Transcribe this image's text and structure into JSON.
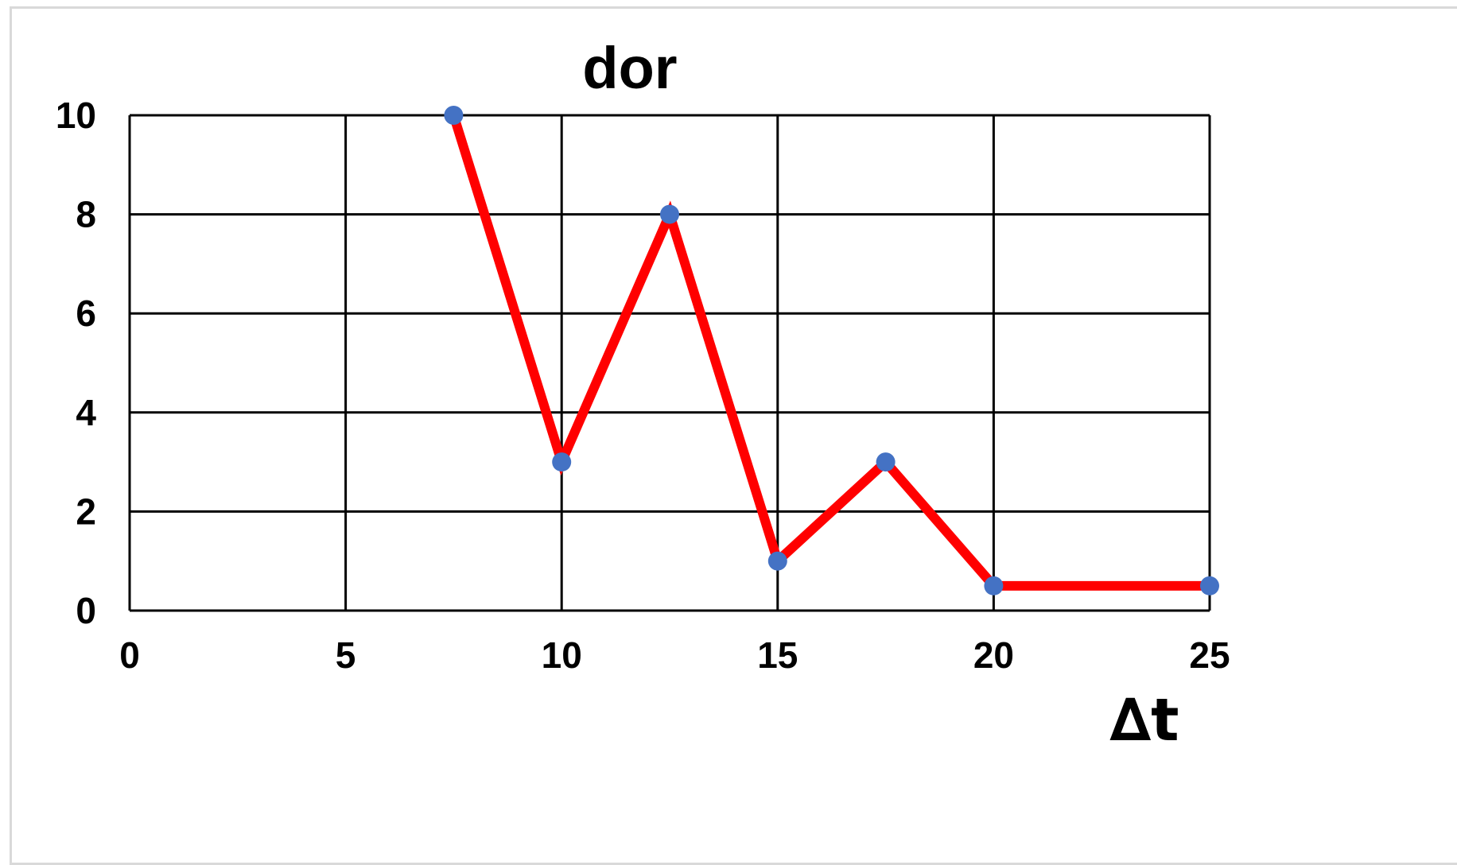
{
  "chart_data": {
    "type": "line",
    "title": "dor",
    "xlabel": "∆t",
    "ylabel": "",
    "xlim": [
      0,
      25
    ],
    "ylim": [
      0,
      10
    ],
    "x_ticks": [
      0,
      5,
      10,
      15,
      20,
      25
    ],
    "y_ticks": [
      0,
      2,
      4,
      6,
      8,
      10
    ],
    "grid": true,
    "legend": "none",
    "series": [
      {
        "x": [
          7.5,
          10,
          12.5,
          15,
          17.5,
          20,
          25
        ],
        "y": [
          10,
          3,
          8,
          1,
          3,
          0.5,
          0.5
        ],
        "line_color": "#ff0000",
        "marker_color": "#4472c4"
      }
    ]
  }
}
